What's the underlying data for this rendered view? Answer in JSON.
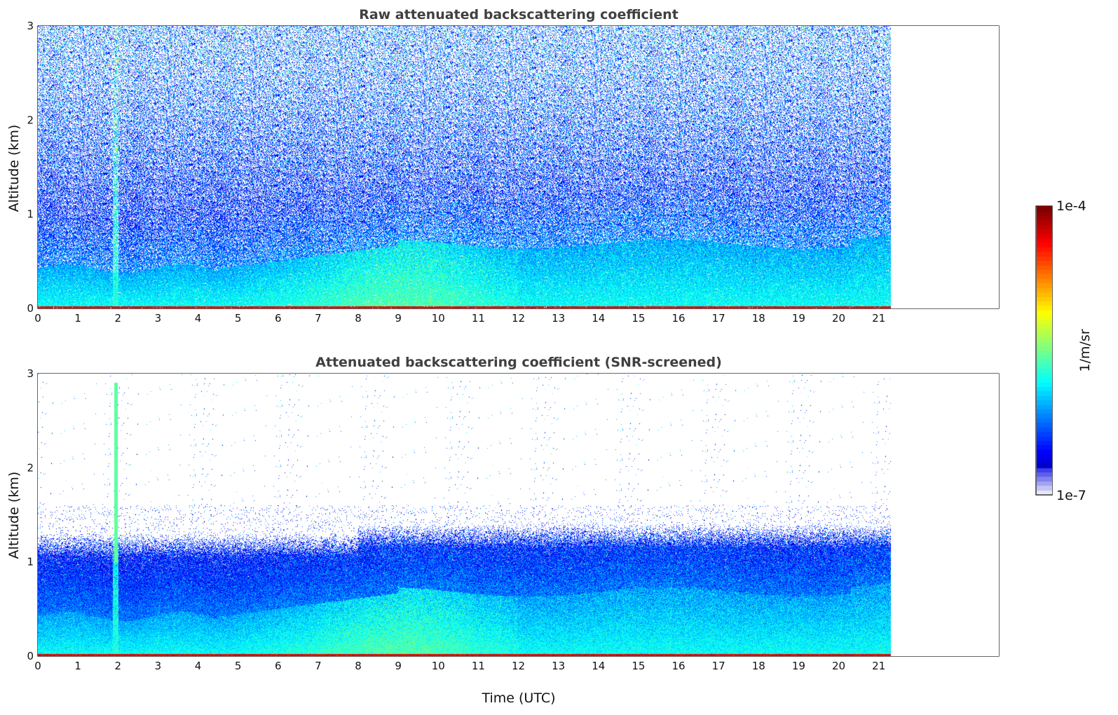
{
  "chart_data": [
    {
      "type": "heatmap",
      "title": "Raw attenuated backscattering coefficient",
      "xlabel": "",
      "ylabel": "Altitude (km)",
      "xlim": [
        0,
        24
      ],
      "ylim": [
        0,
        3
      ],
      "xticks": [
        "0",
        "1",
        "2",
        "3",
        "4",
        "5",
        "6",
        "7",
        "8",
        "9",
        "10",
        "11",
        "12",
        "13",
        "14",
        "15",
        "16",
        "17",
        "18",
        "19",
        "20",
        "21"
      ],
      "yticks": [
        "0",
        "1",
        "2",
        "3"
      ],
      "data_end_time": 21.3,
      "screened": false
    },
    {
      "type": "heatmap",
      "title": "Attenuated backscattering coefficient (SNR-screened)",
      "xlabel": "Time (UTC)",
      "ylabel": "Altitude (km)",
      "xlim": [
        0,
        24
      ],
      "ylim": [
        0,
        3
      ],
      "xticks": [
        "0",
        "1",
        "2",
        "3",
        "4",
        "5",
        "6",
        "7",
        "8",
        "9",
        "10",
        "11",
        "12",
        "13",
        "14",
        "15",
        "16",
        "17",
        "18",
        "19",
        "20",
        "21"
      ],
      "yticks": [
        "0",
        "1",
        "2",
        "3"
      ],
      "data_end_time": 21.3,
      "screened": true
    }
  ],
  "colorbar": {
    "label": "1/m/sr",
    "max_label": "1e-4",
    "min_label": "1e-7",
    "scale": "log",
    "colormap": "jet",
    "min_color": "#e6e6f8",
    "max_color": "#7f0000"
  }
}
